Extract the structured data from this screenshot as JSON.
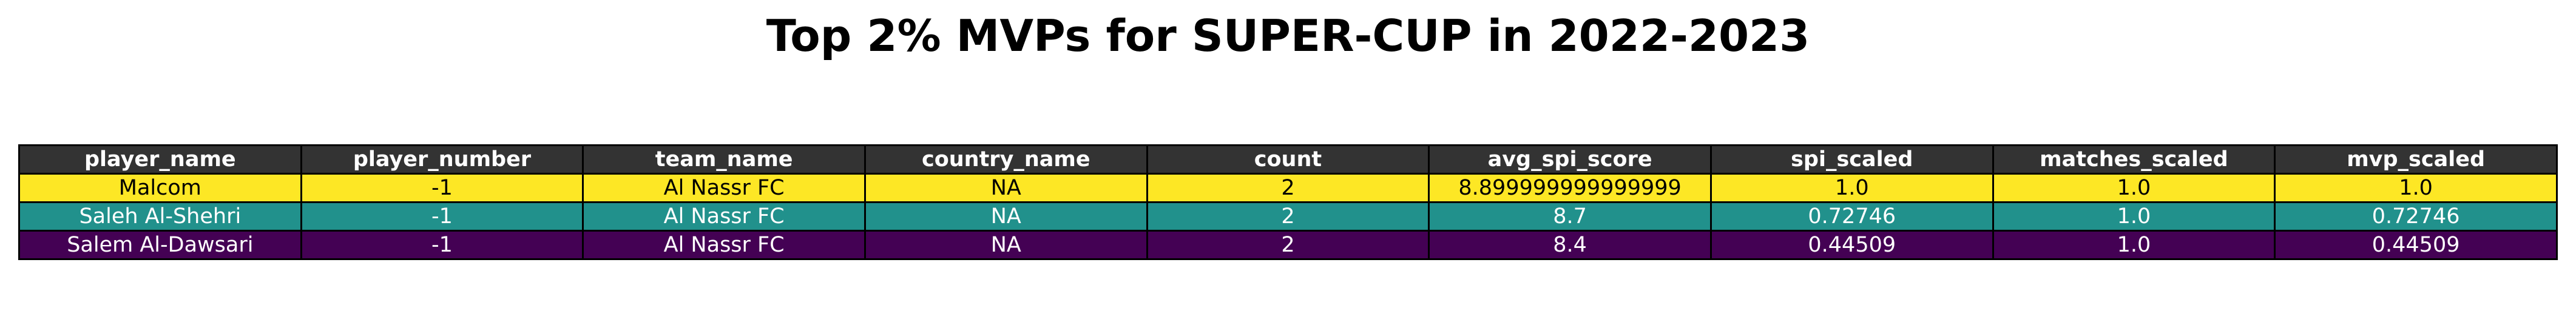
{
  "chart_data": {
    "type": "table",
    "title": "Top 2% MVPs for SUPER-CUP in 2022-2023",
    "columns": [
      "player_name",
      "player_number",
      "team_name",
      "country_name",
      "count",
      "avg_spi_score",
      "spi_scaled",
      "matches_scaled",
      "mvp_scaled"
    ],
    "rows": [
      [
        "Malcom",
        "-1",
        "Al Nassr FC",
        "NA",
        "2",
        "8.899999999999999",
        "1.0",
        "1.0",
        "1.0"
      ],
      [
        "Saleh Al-Shehri",
        "-1",
        "Al Nassr FC",
        "NA",
        "2",
        "8.7",
        "0.72746",
        "1.0",
        "0.72746"
      ],
      [
        "Salem Al-Dawsari",
        "-1",
        "Al Nassr FC",
        "NA",
        "2",
        "8.4",
        "0.44509",
        "1.0",
        "0.44509"
      ]
    ],
    "header_color": "#333333",
    "header_text_color": "#ffffff",
    "row_colors": [
      "#fde725",
      "#21918c",
      "#440154"
    ],
    "row_text_colors": [
      "#000000",
      "#ffffff",
      "#ffffff"
    ]
  }
}
